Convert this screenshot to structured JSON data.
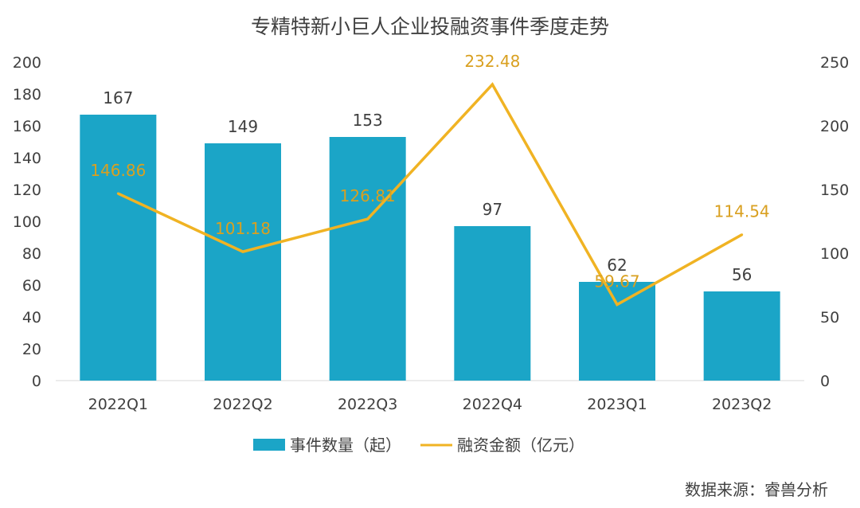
{
  "chart_data": {
    "type": "bar",
    "title": "专精特新小巨人企业投融资事件季度走势",
    "categories": [
      "2022Q1",
      "2022Q2",
      "2022Q3",
      "2022Q4",
      "2023Q1",
      "2023Q2"
    ],
    "series": [
      {
        "name": "事件数量（起）",
        "type": "bar",
        "axis": "left",
        "values": [
          167,
          149,
          153,
          97,
          62,
          56
        ],
        "color": "#1BA5C7"
      },
      {
        "name": "融资金额（亿元）",
        "type": "line",
        "axis": "right",
        "values": [
          146.86,
          101.18,
          126.81,
          232.48,
          59.67,
          114.54
        ],
        "color": "#F0B323"
      }
    ],
    "y_left": {
      "range": [
        0,
        200
      ],
      "ticks": [
        0,
        20,
        40,
        60,
        80,
        100,
        120,
        140,
        160,
        180,
        200
      ]
    },
    "y_right": {
      "range": [
        0,
        250
      ],
      "ticks": [
        0,
        50,
        100,
        150,
        200,
        250
      ]
    },
    "grid": false,
    "legend": "bottom",
    "source": "数据来源：睿兽分析"
  }
}
